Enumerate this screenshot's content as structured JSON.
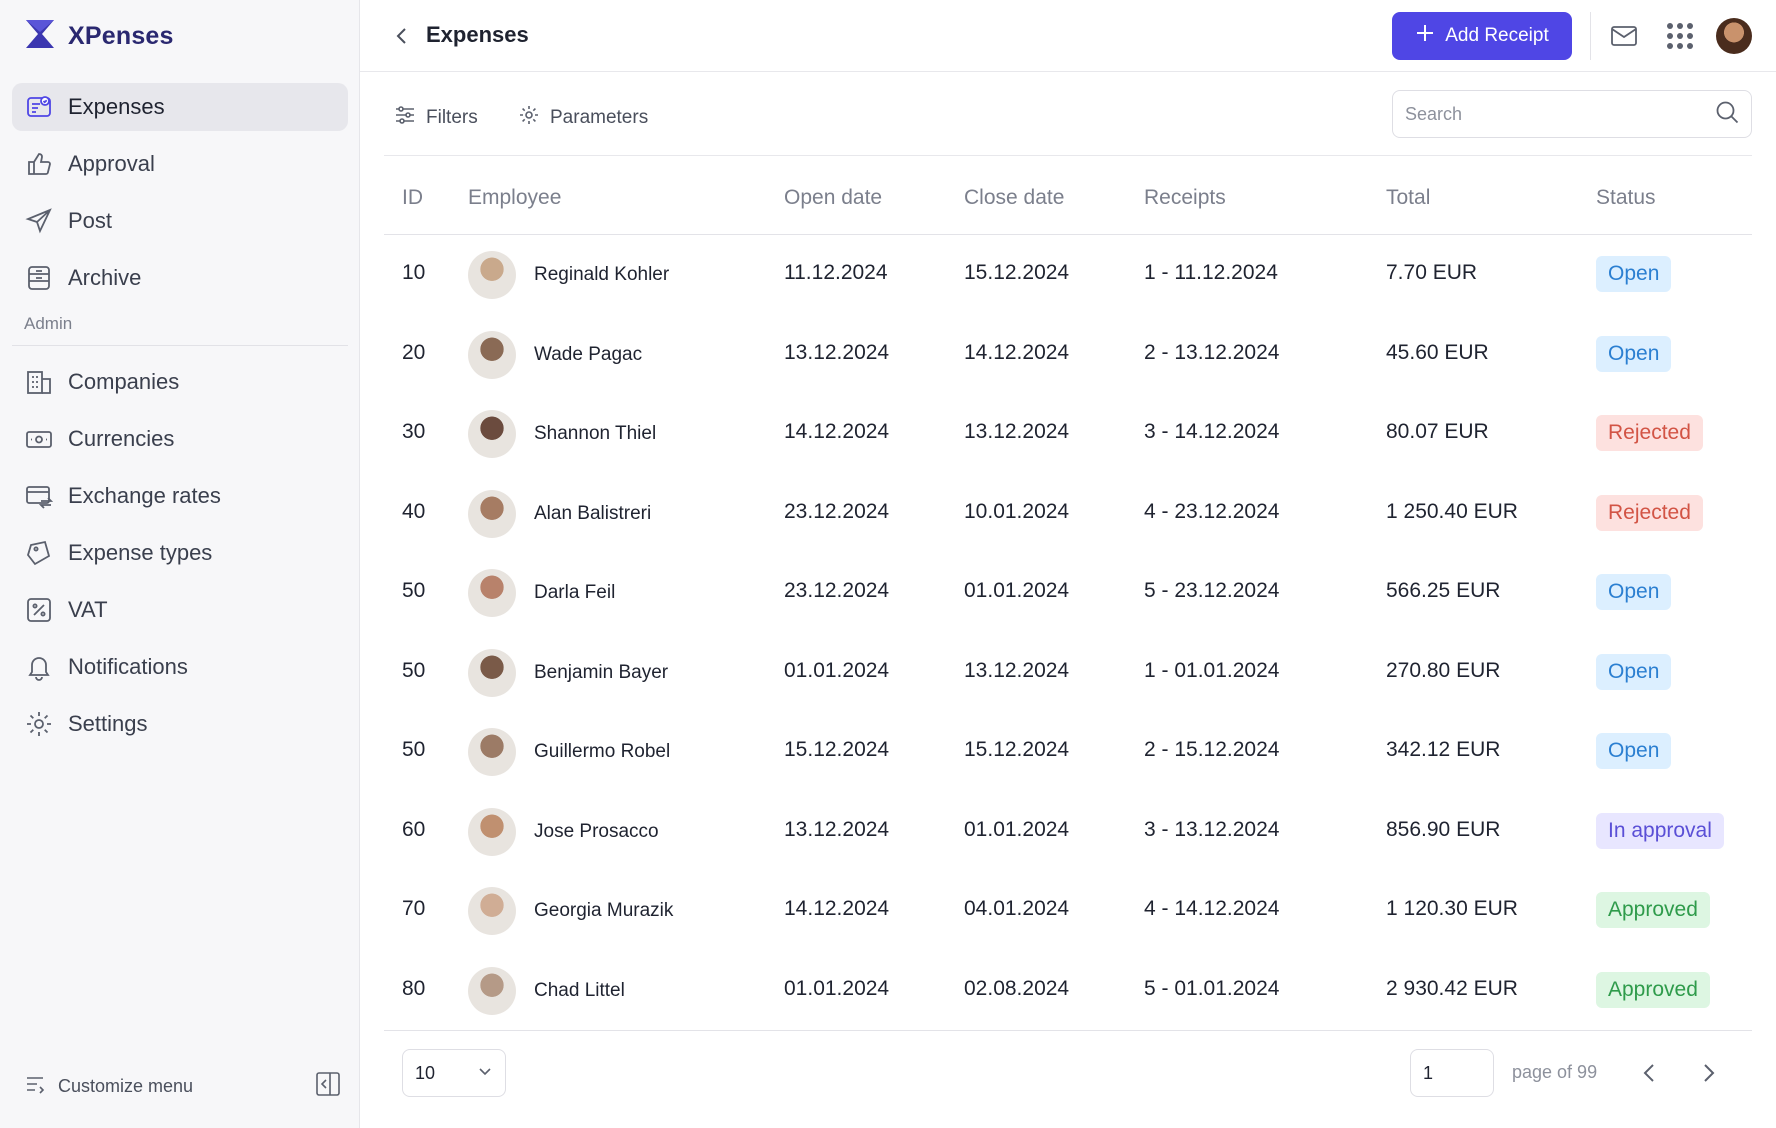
{
  "app": {
    "name": "XPenses",
    "brand_color": "#2a2870",
    "accent_color": "#4f46e5"
  },
  "sidebar": {
    "items": [
      {
        "label": "Expenses",
        "icon": "receipt-icon",
        "active": true
      },
      {
        "label": "Approval",
        "icon": "thumbs-up-icon"
      },
      {
        "label": "Post",
        "icon": "paper-plane-icon"
      },
      {
        "label": "Archive",
        "icon": "archive-icon"
      }
    ],
    "admin_label": "Admin",
    "admin_items": [
      {
        "label": "Companies",
        "icon": "building-icon"
      },
      {
        "label": "Currencies",
        "icon": "banknote-icon"
      },
      {
        "label": "Exchange rates",
        "icon": "exchange-icon"
      },
      {
        "label": "Expense types",
        "icon": "tags-icon"
      },
      {
        "label": "VAT",
        "icon": "percent-icon"
      },
      {
        "label": "Notifications",
        "icon": "bell-icon"
      },
      {
        "label": "Settings",
        "icon": "gear-icon"
      }
    ],
    "customize_label": "Customize menu"
  },
  "header": {
    "title": "Expenses",
    "add_button": "Add Receipt"
  },
  "toolbar": {
    "filters": "Filters",
    "parameters": "Parameters",
    "search_placeholder": "Search"
  },
  "table": {
    "columns": [
      "ID",
      "Employee",
      "Open date",
      "Close date",
      "Receipts",
      "Total",
      "Status"
    ],
    "rows": [
      {
        "id": "10",
        "employee": "Reginald Kohler",
        "open": "11.12.2024",
        "close": "15.12.2024",
        "receipts": "1 - 11.12.2024",
        "total": "7.70 EUR",
        "status": "Open"
      },
      {
        "id": "20",
        "employee": "Wade Pagac",
        "open": "13.12.2024",
        "close": "14.12.2024",
        "receipts": "2 - 13.12.2024",
        "total": "45.60 EUR",
        "status": "Open"
      },
      {
        "id": "30",
        "employee": "Shannon Thiel",
        "open": "14.12.2024",
        "close": "13.12.2024",
        "receipts": "3 - 14.12.2024",
        "total": "80.07 EUR",
        "status": "Rejected"
      },
      {
        "id": "40",
        "employee": "Alan Balistreri",
        "open": "23.12.2024",
        "close": "10.01.2024",
        "receipts": "4 - 23.12.2024",
        "total": "1 250.40 EUR",
        "status": "Rejected"
      },
      {
        "id": "50",
        "employee": "Darla Feil",
        "open": "23.12.2024",
        "close": "01.01.2024",
        "receipts": "5 - 23.12.2024",
        "total": "566.25 EUR",
        "status": "Open"
      },
      {
        "id": "50",
        "employee": "Benjamin Bayer",
        "open": "01.01.2024",
        "close": "13.12.2024",
        "receipts": "1 - 01.01.2024",
        "total": "270.80 EUR",
        "status": "Open"
      },
      {
        "id": "50",
        "employee": "Guillermo Robel",
        "open": "15.12.2024",
        "close": "15.12.2024",
        "receipts": "2 - 15.12.2024",
        "total": "342.12 EUR",
        "status": "Open"
      },
      {
        "id": "60",
        "employee": "Jose Prosacco",
        "open": "13.12.2024",
        "close": "01.01.2024",
        "receipts": "3 - 13.12.2024",
        "total": "856.90 EUR",
        "status": "In approval"
      },
      {
        "id": "70",
        "employee": "Georgia Murazik",
        "open": "14.12.2024",
        "close": "04.01.2024",
        "receipts": "4 - 14.12.2024",
        "total": "1 120.30 EUR",
        "status": "Approved"
      },
      {
        "id": "80",
        "employee": "Chad Littel",
        "open": "01.01.2024",
        "close": "02.08.2024",
        "receipts": "5 - 01.01.2024",
        "total": "2 930.42 EUR",
        "status": "Approved"
      }
    ]
  },
  "pagination": {
    "per_page": "10",
    "current_page": "1",
    "page_of": "page of 99"
  }
}
